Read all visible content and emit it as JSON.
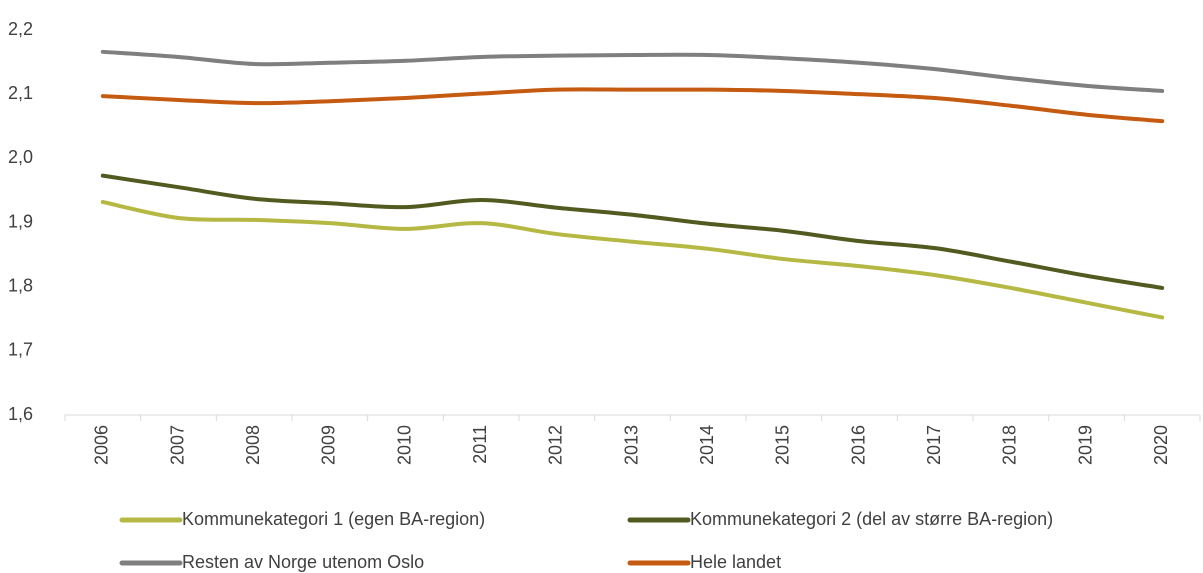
{
  "chart_data": {
    "type": "line",
    "categories": [
      "2006",
      "2007",
      "2008",
      "2009",
      "2010",
      "2011",
      "2012",
      "2013",
      "2014",
      "2015",
      "2016",
      "2017",
      "2018",
      "2019",
      "2020"
    ],
    "series": [
      {
        "name": "Kommunekategori 1 (egen BA-region)",
        "color": "#b5b843",
        "values": [
          1.932,
          1.907,
          1.904,
          1.899,
          1.89,
          1.899,
          1.882,
          1.87,
          1.859,
          1.843,
          1.832,
          1.818,
          1.798,
          1.775,
          1.752
        ]
      },
      {
        "name": "Kommunekategori 2 (del av større BA-region)",
        "color": "#525a1f",
        "values": [
          1.973,
          1.955,
          1.937,
          1.93,
          1.924,
          1.935,
          1.923,
          1.912,
          1.898,
          1.887,
          1.871,
          1.86,
          1.839,
          1.817,
          1.798
        ]
      },
      {
        "name": "Resten av Norge utenom Oslo",
        "color": "#7f7f7f",
        "values": [
          2.166,
          2.158,
          2.147,
          2.149,
          2.152,
          2.158,
          2.16,
          2.161,
          2.161,
          2.156,
          2.149,
          2.139,
          2.125,
          2.113,
          2.105
        ]
      },
      {
        "name": "Hele landet",
        "color": "#c55a11",
        "values": [
          2.097,
          2.091,
          2.086,
          2.089,
          2.094,
          2.101,
          2.107,
          2.107,
          2.107,
          2.105,
          2.1,
          2.094,
          2.082,
          2.068,
          2.058
        ]
      }
    ],
    "ylim": [
      1.6,
      2.2
    ],
    "yticks": [
      {
        "value": 1.6,
        "label": "1,6"
      },
      {
        "value": 1.7,
        "label": "1,7"
      },
      {
        "value": 1.8,
        "label": "1,8"
      },
      {
        "value": 1.9,
        "label": "1,9"
      },
      {
        "value": 2.0,
        "label": "2,0"
      },
      {
        "value": 2.1,
        "label": "2,1"
      },
      {
        "value": 2.2,
        "label": "2,2"
      }
    ],
    "grid": false,
    "legend": "bottom"
  }
}
